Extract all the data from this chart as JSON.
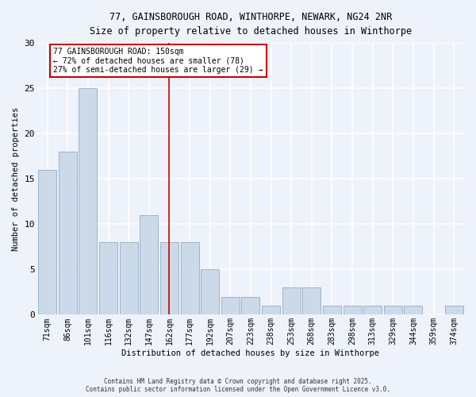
{
  "title_line1": "77, GAINSBOROUGH ROAD, WINTHORPE, NEWARK, NG24 2NR",
  "title_line2": "Size of property relative to detached houses in Winthorpe",
  "xlabel": "Distribution of detached houses by size in Winthorpe",
  "ylabel": "Number of detached properties",
  "categories": [
    "71sqm",
    "86sqm",
    "101sqm",
    "116sqm",
    "132sqm",
    "147sqm",
    "162sqm",
    "177sqm",
    "192sqm",
    "207sqm",
    "223sqm",
    "238sqm",
    "253sqm",
    "268sqm",
    "283sqm",
    "298sqm",
    "313sqm",
    "329sqm",
    "344sqm",
    "359sqm",
    "374sqm"
  ],
  "values": [
    16,
    18,
    25,
    8,
    8,
    11,
    8,
    8,
    5,
    2,
    2,
    1,
    3,
    3,
    1,
    1,
    1,
    1,
    1,
    0,
    1
  ],
  "bar_color": "#ccd9e8",
  "bar_edge_color": "#9ab4cc",
  "red_line_index": 6,
  "annotation_text": "77 GAINSBOROUGH ROAD: 150sqm\n← 72% of detached houses are smaller (78)\n27% of semi-detached houses are larger (29) →",
  "annotation_box_color": "white",
  "annotation_box_edge_color": "#cc0000",
  "ylim": [
    0,
    30
  ],
  "yticks": [
    0,
    5,
    10,
    15,
    20,
    25,
    30
  ],
  "background_color": "#eef2fa",
  "grid_color": "#ffffff",
  "footer_text": "Contains HM Land Registry data © Crown copyright and database right 2025.\nContains public sector information licensed under the Open Government Licence v3.0."
}
